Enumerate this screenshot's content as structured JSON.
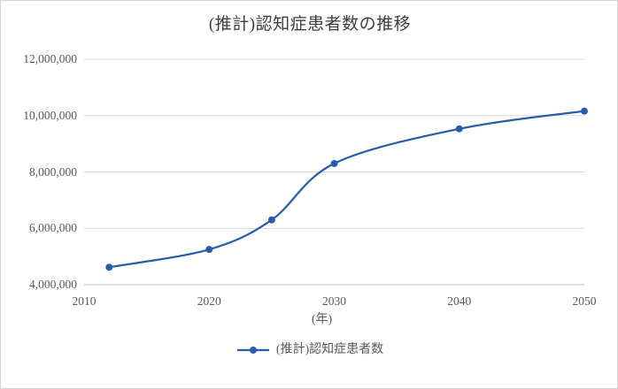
{
  "chart_data": {
    "type": "line",
    "title": "(推計)認知症患者数の推移",
    "xlabel": "(年)",
    "ylabel": "",
    "xlim": [
      2010,
      2050
    ],
    "ylim": [
      4000000,
      12000000
    ],
    "grid": "horizontal",
    "legend_position": "bottom",
    "x_ticks": [
      {
        "value": 2010,
        "label": "2010"
      },
      {
        "value": 2020,
        "label": "2020"
      },
      {
        "value": 2030,
        "label": "2030"
      },
      {
        "value": 2040,
        "label": "2040"
      },
      {
        "value": 2050,
        "label": "2050"
      }
    ],
    "y_ticks": [
      {
        "value": 4000000,
        "label": "4,000,000"
      },
      {
        "value": 6000000,
        "label": "6,000,000"
      },
      {
        "value": 8000000,
        "label": "8,000,000"
      },
      {
        "value": 10000000,
        "label": "10,000,000"
      },
      {
        "value": 12000000,
        "label": "12,000,000"
      }
    ],
    "series": [
      {
        "name": "(推計)認知症患者数",
        "x": [
          2012,
          2020,
          2025,
          2030,
          2040,
          2050
        ],
        "y": [
          4620000,
          5250000,
          6300000,
          8300000,
          9530000,
          10160000
        ],
        "color": "#2A5CAA",
        "marker": "circle",
        "smooth": true
      }
    ],
    "colors": {
      "line": "#2A5CAA",
      "gridline": "#D9D9D9",
      "axis_line": "#BFBFBF",
      "tick_text": "#595959",
      "title_text": "#3D3D3D",
      "background": "#FFFFFF",
      "border": "#D3D3D3"
    }
  }
}
